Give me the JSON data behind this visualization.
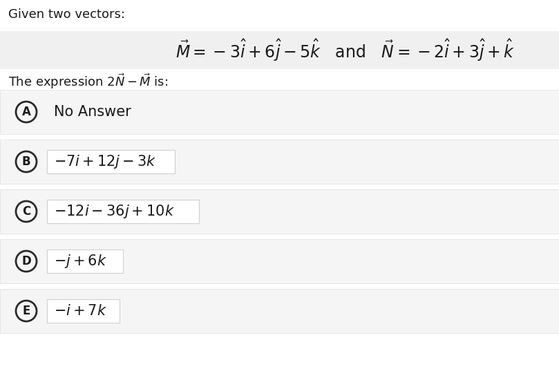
{
  "background_color": "#ffffff",
  "header_text": "Given two vectors:",
  "expression_text": "The expression $2\\vec{N} - \\vec{M}$ is:",
  "options": [
    {
      "label": "A",
      "text": "No Answer",
      "has_box": false
    },
    {
      "label": "B",
      "text": "$- 7i + 12j - 3k$",
      "has_box": true
    },
    {
      "label": "C",
      "text": "$- 12i - 36j + 10k$",
      "has_box": true
    },
    {
      "label": "D",
      "text": "$-j + 6k$",
      "has_box": true
    },
    {
      "label": "E",
      "text": "$-i + 7k$",
      "has_box": true
    }
  ],
  "row_bg": "#f5f5f5",
  "row_border": "#e0e0e0",
  "eq_bg": "#f0f0f0",
  "text_box_bg": "#ffffff",
  "text_box_border": "#d0d0d0",
  "circle_color": "#2a2a2a",
  "text_color": "#1a1a1a",
  "header_fontsize": 13,
  "vector_fontsize": 17,
  "option_text_fontsize": 15,
  "circle_label_fontsize": 12,
  "no_answer_fontsize": 15
}
